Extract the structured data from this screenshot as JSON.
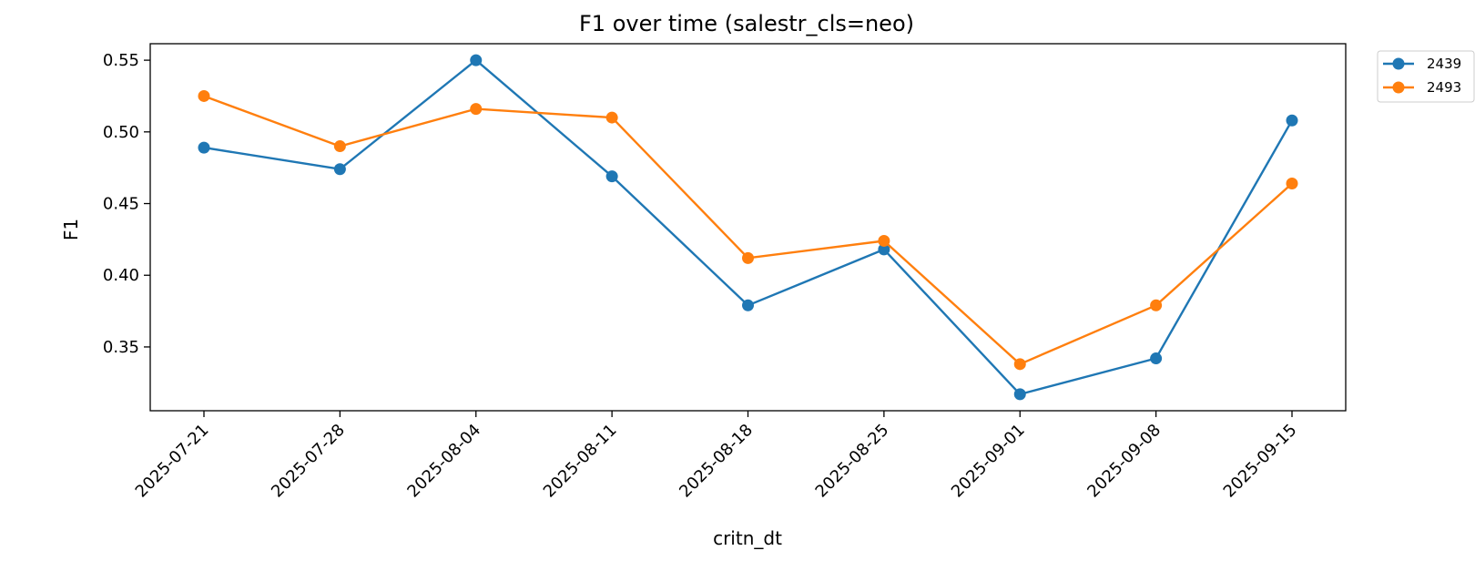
{
  "chart_data": {
    "type": "line",
    "title": "F1 over time (salestr_cls=neo)",
    "xlabel": "critn_dt",
    "ylabel": "F1",
    "categories": [
      "2025-07-21",
      "2025-07-28",
      "2025-08-04",
      "2025-08-11",
      "2025-08-18",
      "2025-08-25",
      "2025-09-01",
      "2025-09-08",
      "2025-09-15"
    ],
    "series": [
      {
        "name": "2439",
        "color": "#1f77b4",
        "values": [
          0.489,
          0.474,
          0.55,
          0.469,
          0.379,
          0.418,
          0.317,
          0.342,
          0.508
        ]
      },
      {
        "name": "2493",
        "color": "#ff7f0e",
        "values": [
          0.525,
          0.49,
          0.516,
          0.51,
          0.412,
          0.424,
          0.338,
          0.379,
          0.464
        ]
      }
    ],
    "ylim": [
      0.3055,
      0.5615
    ],
    "yticks": [
      0.35,
      0.4,
      0.45,
      0.5,
      0.55
    ],
    "ytick_labels": [
      "0.35",
      "0.40",
      "0.45",
      "0.50",
      "0.55"
    ],
    "grid": false,
    "legend_position": "outside-top-right",
    "marker": "circle"
  }
}
